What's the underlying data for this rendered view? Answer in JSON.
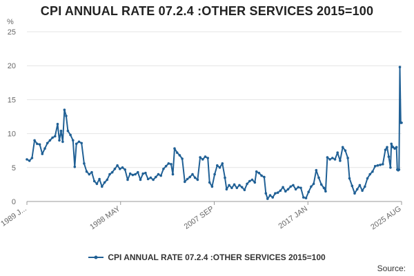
{
  "chart_data": {
    "type": "line",
    "title": "CPI ANNUAL RATE 07.2.4 :OTHER SERVICES 2015=100",
    "ylabel": "%",
    "ylim": [
      0,
      25
    ],
    "yticks": [
      "0",
      "5",
      "10",
      "15",
      "20",
      "25"
    ],
    "xticks": [
      "1989 J...",
      "1998 MAY",
      "2007 SEP",
      "2017 JAN",
      "2025 AUG"
    ],
    "xlim": [
      "1989-01",
      "2025-08"
    ],
    "grid": true,
    "legend": "bottom",
    "series": [
      {
        "name": "CPI ANNUAL RATE 07.2.4 :OTHER SERVICES 2015=100",
        "color": "#206095",
        "points": [
          [
            "1989-01",
            6.2
          ],
          [
            "1989-04",
            6.0
          ],
          [
            "1989-07",
            6.4
          ],
          [
            "1989-10",
            9.0
          ],
          [
            "1990-01",
            8.5
          ],
          [
            "1990-04",
            8.4
          ],
          [
            "1990-07",
            7.0
          ],
          [
            "1990-10",
            7.8
          ],
          [
            "1991-01",
            8.6
          ],
          [
            "1991-04",
            9.0
          ],
          [
            "1991-07",
            9.4
          ],
          [
            "1991-10",
            9.6
          ],
          [
            "1992-01",
            11.4
          ],
          [
            "1992-03",
            9.0
          ],
          [
            "1992-05",
            10.4
          ],
          [
            "1992-07",
            8.8
          ],
          [
            "1992-09",
            13.5
          ],
          [
            "1992-11",
            12.6
          ],
          [
            "1993-01",
            10.4
          ],
          [
            "1993-04",
            9.8
          ],
          [
            "1993-07",
            9.0
          ],
          [
            "1993-09",
            5.1
          ],
          [
            "1993-11",
            8.5
          ],
          [
            "1994-02",
            8.8
          ],
          [
            "1994-05",
            8.6
          ],
          [
            "1994-08",
            5.6
          ],
          [
            "1994-11",
            4.4
          ],
          [
            "1995-02",
            4.0
          ],
          [
            "1995-05",
            4.3
          ],
          [
            "1995-08",
            3.0
          ],
          [
            "1995-11",
            2.6
          ],
          [
            "1996-02",
            3.3
          ],
          [
            "1996-05",
            2.2
          ],
          [
            "1996-08",
            2.8
          ],
          [
            "1996-11",
            3.2
          ],
          [
            "1997-02",
            4.0
          ],
          [
            "1997-05",
            4.3
          ],
          [
            "1997-08",
            4.8
          ],
          [
            "1997-11",
            5.3
          ],
          [
            "1998-02",
            4.8
          ],
          [
            "1998-05",
            5.0
          ],
          [
            "1998-08",
            4.7
          ],
          [
            "1998-11",
            3.2
          ],
          [
            "1999-02",
            4.1
          ],
          [
            "1999-05",
            3.9
          ],
          [
            "1999-08",
            4.0
          ],
          [
            "1999-11",
            4.3
          ],
          [
            "2000-02",
            3.2
          ],
          [
            "2000-05",
            4.1
          ],
          [
            "2000-08",
            4.2
          ],
          [
            "2000-11",
            3.3
          ],
          [
            "2001-02",
            3.5
          ],
          [
            "2001-05",
            3.2
          ],
          [
            "2001-08",
            3.6
          ],
          [
            "2001-11",
            4.0
          ],
          [
            "2002-02",
            3.8
          ],
          [
            "2002-05",
            4.8
          ],
          [
            "2002-08",
            5.2
          ],
          [
            "2002-11",
            5.6
          ],
          [
            "2003-02",
            5.5
          ],
          [
            "2003-04",
            4.0
          ],
          [
            "2003-06",
            7.8
          ],
          [
            "2003-09",
            7.2
          ],
          [
            "2003-12",
            6.8
          ],
          [
            "2004-03",
            6.3
          ],
          [
            "2004-06",
            2.9
          ],
          [
            "2004-09",
            3.3
          ],
          [
            "2004-12",
            3.6
          ],
          [
            "2005-03",
            4.0
          ],
          [
            "2005-06",
            3.5
          ],
          [
            "2005-09",
            3.2
          ],
          [
            "2005-12",
            6.5
          ],
          [
            "2006-03",
            6.2
          ],
          [
            "2006-06",
            6.6
          ],
          [
            "2006-09",
            6.4
          ],
          [
            "2006-11",
            2.8
          ],
          [
            "2007-02",
            2.2
          ],
          [
            "2007-05",
            4.0
          ],
          [
            "2007-08",
            5.3
          ],
          [
            "2007-11",
            5.0
          ],
          [
            "2008-02",
            5.6
          ],
          [
            "2008-05",
            3.5
          ],
          [
            "2008-07",
            1.8
          ],
          [
            "2008-10",
            2.4
          ],
          [
            "2009-01",
            2.0
          ],
          [
            "2009-04",
            2.5
          ],
          [
            "2009-07",
            2.0
          ],
          [
            "2009-10",
            2.4
          ],
          [
            "2010-01",
            2.1
          ],
          [
            "2010-04",
            1.7
          ],
          [
            "2010-07",
            2.6
          ],
          [
            "2010-10",
            3.0
          ],
          [
            "2011-01",
            3.2
          ],
          [
            "2011-04",
            2.8
          ],
          [
            "2011-06",
            4.4
          ],
          [
            "2011-09",
            4.2
          ],
          [
            "2011-12",
            3.8
          ],
          [
            "2012-03",
            3.6
          ],
          [
            "2012-05",
            1.2
          ],
          [
            "2012-07",
            0.4
          ],
          [
            "2012-10",
            0.9
          ],
          [
            "2013-01",
            0.6
          ],
          [
            "2013-04",
            1.2
          ],
          [
            "2013-07",
            1.3
          ],
          [
            "2013-10",
            1.6
          ],
          [
            "2014-01",
            2.1
          ],
          [
            "2014-04",
            1.5
          ],
          [
            "2014-07",
            1.8
          ],
          [
            "2014-10",
            2.2
          ],
          [
            "2015-01",
            2.4
          ],
          [
            "2015-04",
            1.8
          ],
          [
            "2015-07",
            2.1
          ],
          [
            "2015-10",
            2.0
          ],
          [
            "2016-01",
            0.6
          ],
          [
            "2016-04",
            0.5
          ],
          [
            "2016-07",
            1.4
          ],
          [
            "2016-10",
            2.2
          ],
          [
            "2017-01",
            2.6
          ],
          [
            "2017-04",
            4.6
          ],
          [
            "2017-07",
            3.5
          ],
          [
            "2017-10",
            2.5
          ],
          [
            "2018-01",
            2.0
          ],
          [
            "2018-03",
            1.5
          ],
          [
            "2018-05",
            6.5
          ],
          [
            "2018-08",
            6.2
          ],
          [
            "2018-11",
            6.4
          ],
          [
            "2019-02",
            6.2
          ],
          [
            "2019-05",
            7.2
          ],
          [
            "2019-08",
            6.0
          ],
          [
            "2019-11",
            8.0
          ],
          [
            "2020-02",
            7.5
          ],
          [
            "2020-05",
            6.4
          ],
          [
            "2020-07",
            3.4
          ],
          [
            "2020-10",
            2.3
          ],
          [
            "2021-01",
            1.2
          ],
          [
            "2021-04",
            1.8
          ],
          [
            "2021-07",
            2.4
          ],
          [
            "2021-10",
            1.6
          ],
          [
            "2022-01",
            2.2
          ],
          [
            "2022-04",
            3.4
          ],
          [
            "2022-07",
            4.0
          ],
          [
            "2022-10",
            4.4
          ],
          [
            "2023-01",
            5.2
          ],
          [
            "2023-04",
            5.3
          ],
          [
            "2023-07",
            5.4
          ],
          [
            "2023-10",
            5.5
          ],
          [
            "2024-01",
            7.6
          ],
          [
            "2024-03",
            8.0
          ],
          [
            "2024-05",
            6.6
          ],
          [
            "2024-07",
            5.0
          ],
          [
            "2024-08",
            8.5
          ],
          [
            "2024-10",
            8.0
          ],
          [
            "2024-12",
            7.8
          ],
          [
            "2025-02",
            8.0
          ],
          [
            "2025-03",
            4.7
          ],
          [
            "2025-04",
            4.6
          ],
          [
            "2025-05",
            4.7
          ],
          [
            "2025-06",
            19.8
          ],
          [
            "2025-07",
            11.6
          ],
          [
            "2025-08",
            11.6
          ]
        ]
      }
    ]
  },
  "source_label": "Source:"
}
